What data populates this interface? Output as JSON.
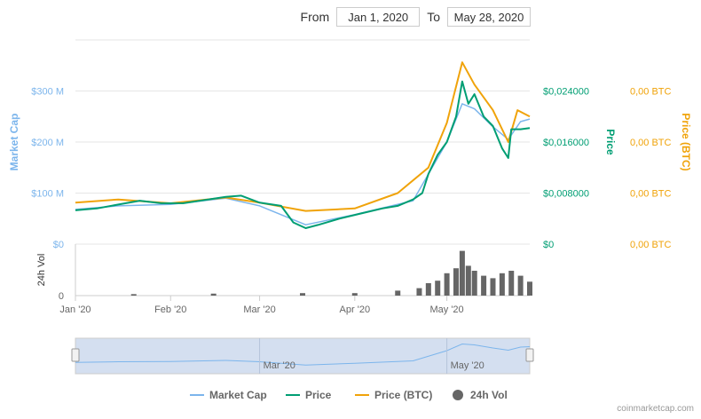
{
  "range_selector": {
    "from_label": "From",
    "from_value": "Jan 1, 2020",
    "to_label": "To",
    "to_value": "May 28, 2020"
  },
  "credit": "coinmarketcap.com",
  "colors": {
    "market_cap": "#7cb5ec",
    "price": "#009e73",
    "price_btc": "#f0a30a",
    "volume": "#666666",
    "grid": "#e6e6e6"
  },
  "chart_data": [
    {
      "type": "line",
      "title": "",
      "x_start": "2020-01-01",
      "x_end": "2020-05-28",
      "x_ticks": [
        {
          "date": "2020-01-01",
          "label": "Jan '20"
        },
        {
          "date": "2020-02-01",
          "label": "Feb '20"
        },
        {
          "date": "2020-03-01",
          "label": "Mar '20"
        },
        {
          "date": "2020-04-01",
          "label": "Apr '20"
        },
        {
          "date": "2020-05-01",
          "label": "May '20"
        }
      ],
      "axes": {
        "left": {
          "title": "Market Cap",
          "ticks": [
            "$0",
            "$100 M",
            "$200 M",
            "$300 M"
          ],
          "range": [
            0,
            300
          ]
        },
        "right1": {
          "title": "Price",
          "ticks": [
            "$0",
            "$0,008000",
            "$0,016000",
            "$0,024000"
          ],
          "range": [
            0,
            0.024
          ]
        },
        "right2": {
          "title": "Price (BTC)",
          "ticks": [
            "0,00 BTC",
            "0,00 BTC",
            "0,00 BTC",
            "0,00 BTC"
          ]
        }
      },
      "series": [
        {
          "name": "Price",
          "axis": "right1",
          "points": [
            [
              "2020-01-01",
              0.0053
            ],
            [
              "2020-01-08",
              0.0056
            ],
            [
              "2020-01-15",
              0.0062
            ],
            [
              "2020-01-22",
              0.0068
            ],
            [
              "2020-01-29",
              0.0064
            ],
            [
              "2020-02-05",
              0.0064
            ],
            [
              "2020-02-12",
              0.0069
            ],
            [
              "2020-02-19",
              0.0074
            ],
            [
              "2020-02-24",
              0.0076
            ],
            [
              "2020-03-01",
              0.0065
            ],
            [
              "2020-03-08",
              0.006
            ],
            [
              "2020-03-12",
              0.0034
            ],
            [
              "2020-03-16",
              0.0025
            ],
            [
              "2020-03-20",
              0.003
            ],
            [
              "2020-03-27",
              0.004
            ],
            [
              "2020-04-03",
              0.0048
            ],
            [
              "2020-04-10",
              0.0056
            ],
            [
              "2020-04-15",
              0.006
            ],
            [
              "2020-04-20",
              0.007
            ],
            [
              "2020-04-23",
              0.008
            ],
            [
              "2020-04-25",
              0.011
            ],
            [
              "2020-04-28",
              0.014
            ],
            [
              "2020-05-01",
              0.016
            ],
            [
              "2020-05-04",
              0.02
            ],
            [
              "2020-05-06",
              0.0255
            ],
            [
              "2020-05-08",
              0.022
            ],
            [
              "2020-05-10",
              0.0235
            ],
            [
              "2020-05-13",
              0.02
            ],
            [
              "2020-05-16",
              0.0185
            ],
            [
              "2020-05-19",
              0.015
            ],
            [
              "2020-05-21",
              0.0135
            ],
            [
              "2020-05-22",
              0.018
            ],
            [
              "2020-05-25",
              0.018
            ],
            [
              "2020-05-28",
              0.0182
            ]
          ]
        },
        {
          "name": "Market Cap",
          "axis": "left",
          "points": [
            [
              "2020-01-01",
              68
            ],
            [
              "2020-01-15",
              75
            ],
            [
              "2020-02-01",
              78
            ],
            [
              "2020-02-19",
              90
            ],
            [
              "2020-03-01",
              75
            ],
            [
              "2020-03-16",
              38
            ],
            [
              "2020-04-01",
              58
            ],
            [
              "2020-04-20",
              85
            ],
            [
              "2020-05-01",
              200
            ],
            [
              "2020-05-06",
              275
            ],
            [
              "2020-05-10",
              265
            ],
            [
              "2020-05-16",
              230
            ],
            [
              "2020-05-21",
              205
            ],
            [
              "2020-05-25",
              240
            ],
            [
              "2020-05-28",
              245
            ]
          ]
        },
        {
          "name": "Price (BTC)",
          "axis": "right2",
          "points": [
            [
              "2020-01-01",
              0.0065
            ],
            [
              "2020-01-15",
              0.007
            ],
            [
              "2020-02-01",
              0.0064
            ],
            [
              "2020-02-19",
              0.0073
            ],
            [
              "2020-03-01",
              0.0065
            ],
            [
              "2020-03-16",
              0.0052
            ],
            [
              "2020-04-01",
              0.0056
            ],
            [
              "2020-04-15",
              0.008
            ],
            [
              "2020-04-25",
              0.012
            ],
            [
              "2020-05-01",
              0.019
            ],
            [
              "2020-05-06",
              0.0285
            ],
            [
              "2020-05-10",
              0.025
            ],
            [
              "2020-05-16",
              0.021
            ],
            [
              "2020-05-21",
              0.016
            ],
            [
              "2020-05-24",
              0.021
            ],
            [
              "2020-05-28",
              0.02
            ]
          ]
        }
      ]
    },
    {
      "type": "bar",
      "title": "",
      "axis_title": "24h Vol",
      "ticks": [
        "0",
        "$0"
      ],
      "series": [
        {
          "name": "24h Vol",
          "points": [
            [
              "2020-01-20",
              0.03
            ],
            [
              "2020-02-15",
              0.04
            ],
            [
              "2020-03-15",
              0.05
            ],
            [
              "2020-04-01",
              0.05
            ],
            [
              "2020-04-15",
              0.1
            ],
            [
              "2020-04-22",
              0.15
            ],
            [
              "2020-04-25",
              0.25
            ],
            [
              "2020-04-28",
              0.3
            ],
            [
              "2020-05-01",
              0.45
            ],
            [
              "2020-05-04",
              0.55
            ],
            [
              "2020-05-06",
              0.9
            ],
            [
              "2020-05-08",
              0.6
            ],
            [
              "2020-05-10",
              0.5
            ],
            [
              "2020-05-13",
              0.4
            ],
            [
              "2020-05-16",
              0.35
            ],
            [
              "2020-05-19",
              0.45
            ],
            [
              "2020-05-22",
              0.5
            ],
            [
              "2020-05-25",
              0.4
            ],
            [
              "2020-05-28",
              0.28
            ]
          ]
        }
      ]
    }
  ],
  "navigator": {
    "labels": [
      "Mar '20",
      "May '20"
    ]
  },
  "legend": [
    {
      "name": "Market Cap",
      "symbol": "line"
    },
    {
      "name": "Price",
      "symbol": "line"
    },
    {
      "name": "Price (BTC)",
      "symbol": "line"
    },
    {
      "name": "24h Vol",
      "symbol": "circle"
    }
  ]
}
